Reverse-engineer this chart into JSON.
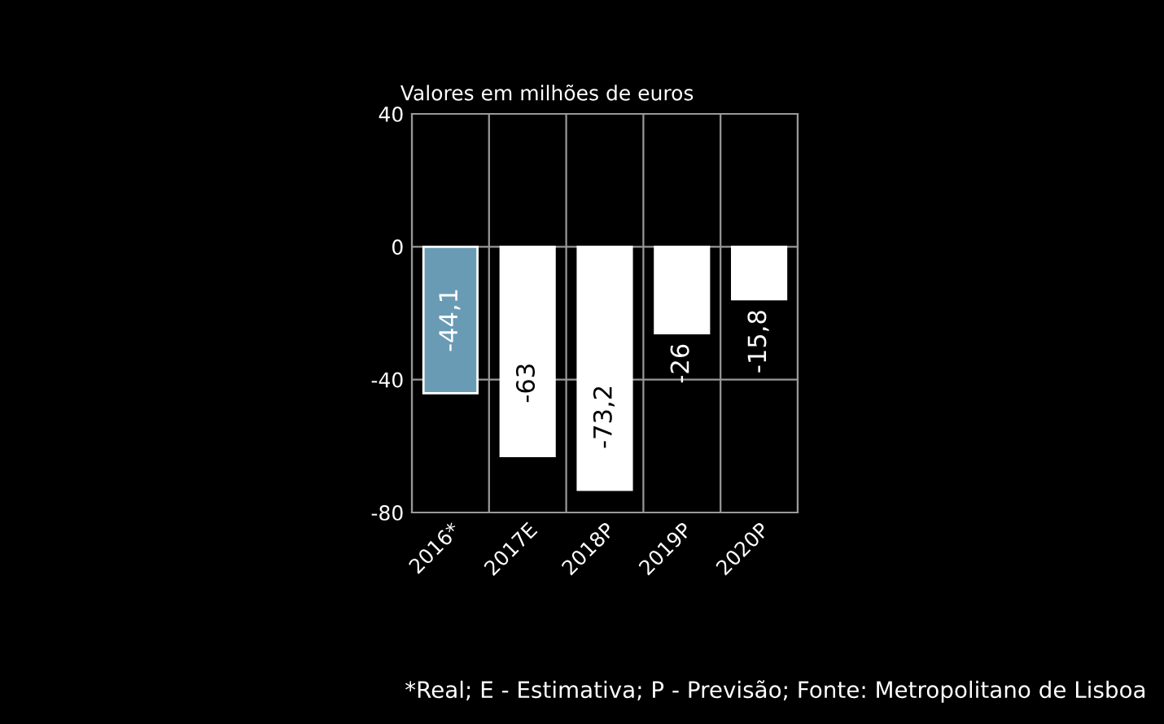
{
  "chart_data": {
    "type": "bar",
    "title": "Valores em milhões de euros",
    "categories": [
      "2016*",
      "2017E",
      "2018P",
      "2019P",
      "2020P"
    ],
    "values": [
      -44.1,
      -63,
      -73.2,
      -26,
      -15.8
    ],
    "colors": [
      "#6a9bb5",
      "#ffffff",
      "#ffffff",
      "#ffffff",
      "#ffffff"
    ],
    "value_labels": [
      "-44,1",
      "-63",
      "-73,2",
      "-26",
      "-15,8"
    ],
    "ylim": [
      -80,
      40
    ],
    "yticks": [
      -80,
      -40,
      0,
      40
    ],
    "grid": true,
    "legend": false,
    "annotations": [
      "*Real; E - Estimativa; P - Previsão; Fonte: Metropolitano de Lisboa"
    ]
  }
}
